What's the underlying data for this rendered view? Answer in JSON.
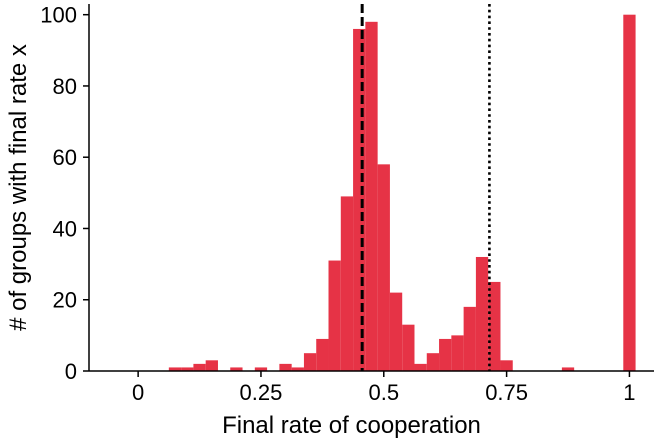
{
  "chart_data": {
    "type": "bar",
    "title": "",
    "xlabel": "Final rate of cooperation",
    "ylabel": "# of groups with final rate x",
    "xlim": [
      -0.1,
      1.05
    ],
    "ylim": [
      0,
      103
    ],
    "x_ticks": [
      {
        "value": 0,
        "label": "0"
      },
      {
        "value": 0.25,
        "label": "0.25"
      },
      {
        "value": 0.5,
        "label": "0.5"
      },
      {
        "value": 0.75,
        "label": "0.75"
      },
      {
        "value": 1,
        "label": "1"
      }
    ],
    "y_ticks": [
      {
        "value": 0,
        "label": "0"
      },
      {
        "value": 20,
        "label": "20"
      },
      {
        "value": 40,
        "label": "40"
      },
      {
        "value": 60,
        "label": "60"
      },
      {
        "value": 80,
        "label": "80"
      },
      {
        "value": 100,
        "label": "100"
      }
    ],
    "bin_width": 0.025,
    "bins": [
      {
        "x": 0.075,
        "count": 1
      },
      {
        "x": 0.1,
        "count": 1
      },
      {
        "x": 0.125,
        "count": 2
      },
      {
        "x": 0.15,
        "count": 3
      },
      {
        "x": 0.2,
        "count": 1
      },
      {
        "x": 0.25,
        "count": 1
      },
      {
        "x": 0.3,
        "count": 2
      },
      {
        "x": 0.325,
        "count": 1
      },
      {
        "x": 0.35,
        "count": 5
      },
      {
        "x": 0.375,
        "count": 9
      },
      {
        "x": 0.4,
        "count": 31
      },
      {
        "x": 0.425,
        "count": 49
      },
      {
        "x": 0.45,
        "count": 96
      },
      {
        "x": 0.475,
        "count": 98
      },
      {
        "x": 0.5,
        "count": 58
      },
      {
        "x": 0.525,
        "count": 22
      },
      {
        "x": 0.55,
        "count": 13
      },
      {
        "x": 0.575,
        "count": 2
      },
      {
        "x": 0.6,
        "count": 5
      },
      {
        "x": 0.625,
        "count": 9
      },
      {
        "x": 0.65,
        "count": 10
      },
      {
        "x": 0.675,
        "count": 18
      },
      {
        "x": 0.7,
        "count": 32
      },
      {
        "x": 0.725,
        "count": 25
      },
      {
        "x": 0.75,
        "count": 3
      },
      {
        "x": 0.875,
        "count": 1
      },
      {
        "x": 1.0,
        "count": 100
      }
    ],
    "vlines": [
      {
        "x": 0.456,
        "style": "dashed"
      },
      {
        "x": 0.715,
        "style": "dotted"
      }
    ],
    "bar_color": "#e63346",
    "grid": false,
    "legend": "none"
  }
}
